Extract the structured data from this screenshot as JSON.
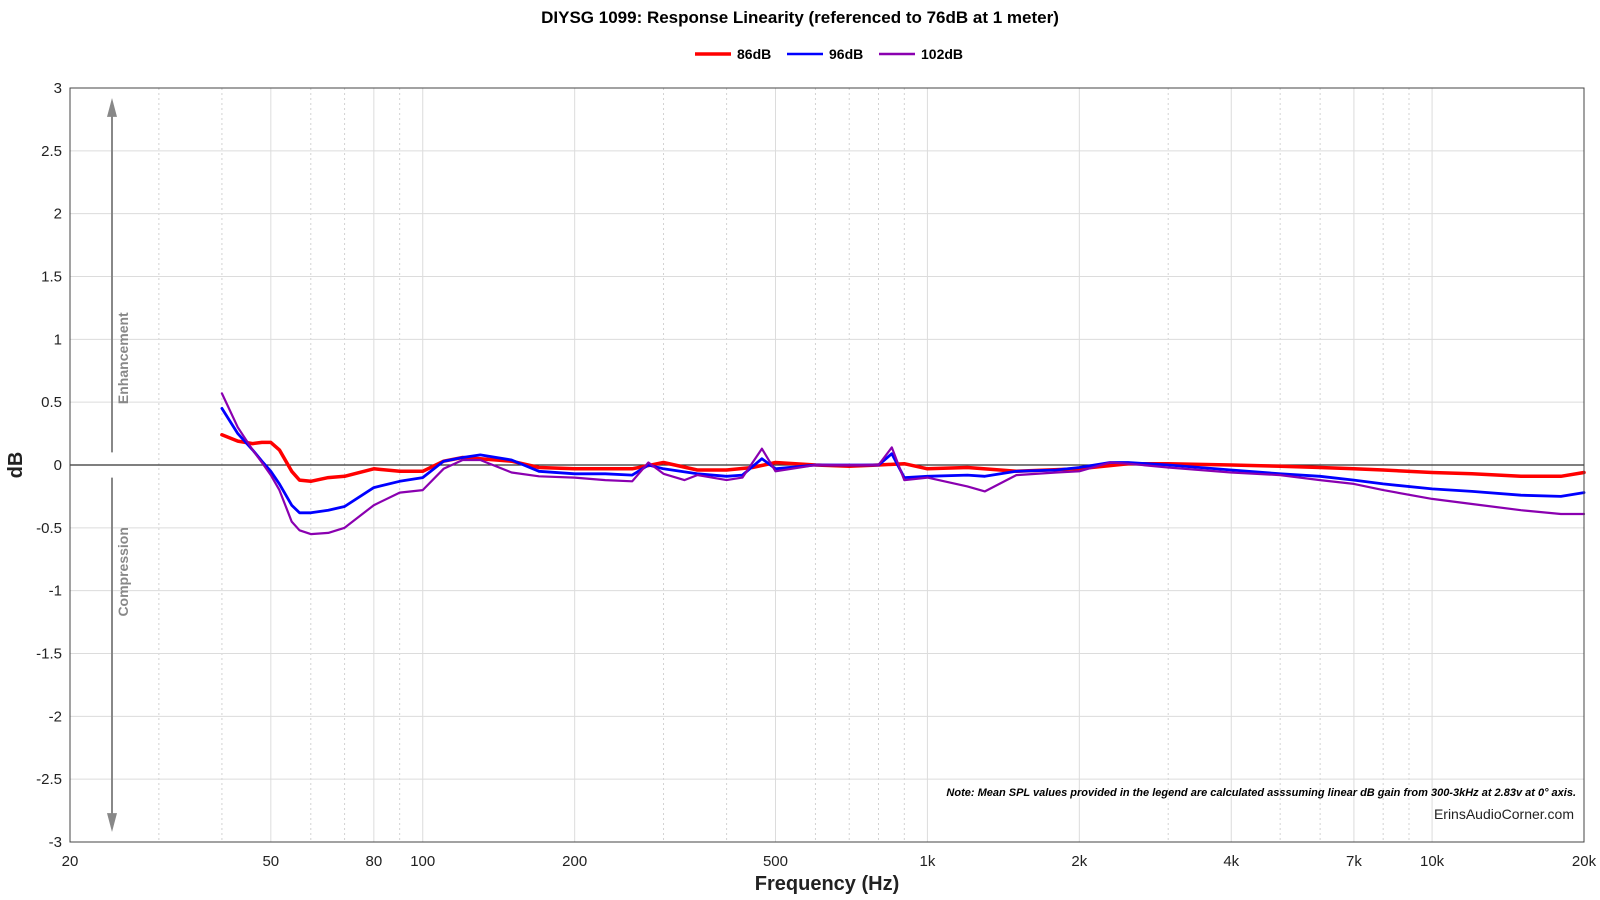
{
  "chart_data": {
    "type": "line",
    "title": "DIYSG 1099: Response Linearity (referenced to 76dB at 1 meter)",
    "xlabel": "Frequency (Hz)",
    "ylabel": "dB",
    "x_scale": "log",
    "xlim": [
      20,
      20000
    ],
    "ylim": [
      -3,
      3
    ],
    "x_tick_values": [
      20,
      50,
      80,
      100,
      200,
      500,
      1000,
      2000,
      4000,
      7000,
      10000,
      20000
    ],
    "x_tick_labels": [
      "20",
      "50",
      "80",
      "100",
      "200",
      "500",
      "1k",
      "2k",
      "4k",
      "7k",
      "10k",
      "20k"
    ],
    "y_tick_values": [
      3,
      2.5,
      2,
      1.5,
      1,
      0.5,
      0,
      -0.5,
      -1,
      -1.5,
      -2,
      -2.5,
      -3
    ],
    "y_tick_labels": [
      "3",
      "2.5",
      "2",
      "1.5",
      "1",
      "0.5",
      "0",
      "-0.5",
      "-1",
      "-1.5",
      "-2",
      "-2.5",
      "-3"
    ],
    "grid": true,
    "legend_position": "top-center",
    "region_labels": {
      "upper": "Enhancement",
      "lower": "Compression"
    },
    "note": "Note: Mean SPL values provided in the legend are calculated asssuming linear dB gain from 300-3kHz at 2.83v at 0° axis.",
    "credit": "ErinsAudioCorner.com",
    "series": [
      {
        "name": "86dB",
        "color": "#ff0000",
        "x": [
          40,
          43,
          46,
          48,
          50,
          52,
          55,
          57,
          60,
          65,
          70,
          80,
          90,
          100,
          110,
          120,
          130,
          150,
          170,
          200,
          230,
          260,
          300,
          350,
          400,
          450,
          500,
          600,
          700,
          800,
          900,
          1000,
          1200,
          1500,
          2000,
          2500,
          3000,
          4000,
          5000,
          6000,
          7000,
          8000,
          10000,
          12000,
          15000,
          18000,
          20000
        ],
        "y": [
          0.24,
          0.19,
          0.17,
          0.18,
          0.18,
          0.12,
          -0.05,
          -0.12,
          -0.13,
          -0.1,
          -0.09,
          -0.03,
          -0.05,
          -0.05,
          0.03,
          0.06,
          0.05,
          0.03,
          -0.02,
          -0.03,
          -0.03,
          -0.03,
          0.02,
          -0.04,
          -0.04,
          -0.02,
          0.02,
          0.0,
          -0.01,
          0.0,
          0.01,
          -0.03,
          -0.02,
          -0.05,
          -0.03,
          0.01,
          0.01,
          0.0,
          -0.01,
          -0.02,
          -0.03,
          -0.04,
          -0.06,
          -0.07,
          -0.09,
          -0.09,
          -0.06
        ]
      },
      {
        "name": "96dB",
        "color": "#0000ff",
        "x": [
          40,
          43,
          46,
          48,
          50,
          52,
          55,
          57,
          60,
          65,
          70,
          80,
          90,
          100,
          110,
          120,
          130,
          150,
          170,
          200,
          230,
          260,
          280,
          300,
          350,
          400,
          430,
          470,
          500,
          600,
          700,
          800,
          850,
          900,
          1000,
          1200,
          1300,
          1500,
          1800,
          2000,
          2300,
          2500,
          3000,
          4000,
          5000,
          6000,
          7000,
          8000,
          10000,
          12000,
          15000,
          18000,
          20000
        ],
        "y": [
          0.45,
          0.25,
          0.12,
          0.03,
          -0.05,
          -0.15,
          -0.32,
          -0.38,
          -0.38,
          -0.36,
          -0.33,
          -0.18,
          -0.13,
          -0.1,
          0.03,
          0.06,
          0.08,
          0.04,
          -0.05,
          -0.07,
          -0.07,
          -0.08,
          0.0,
          -0.03,
          -0.07,
          -0.09,
          -0.08,
          0.05,
          -0.03,
          0.0,
          0.0,
          0.0,
          0.09,
          -0.1,
          -0.09,
          -0.08,
          -0.09,
          -0.05,
          -0.04,
          -0.02,
          0.02,
          0.02,
          0.0,
          -0.04,
          -0.07,
          -0.09,
          -0.12,
          -0.15,
          -0.19,
          -0.21,
          -0.24,
          -0.25,
          -0.22
        ]
      },
      {
        "name": "102dB",
        "color": "#8a00b0",
        "x": [
          40,
          43,
          46,
          48,
          50,
          52,
          55,
          57,
          60,
          65,
          70,
          80,
          90,
          100,
          110,
          120,
          130,
          150,
          170,
          200,
          230,
          260,
          280,
          300,
          330,
          350,
          400,
          430,
          470,
          500,
          600,
          700,
          800,
          850,
          900,
          1000,
          1200,
          1300,
          1500,
          1800,
          2000,
          2300,
          2500,
          3000,
          4000,
          5000,
          6000,
          7000,
          8000,
          10000,
          12000,
          15000,
          18000,
          20000
        ],
        "y": [
          0.57,
          0.3,
          0.12,
          0.02,
          -0.08,
          -0.2,
          -0.45,
          -0.52,
          -0.55,
          -0.54,
          -0.5,
          -0.32,
          -0.22,
          -0.2,
          -0.03,
          0.04,
          0.04,
          -0.06,
          -0.09,
          -0.1,
          -0.12,
          -0.13,
          0.02,
          -0.07,
          -0.12,
          -0.08,
          -0.12,
          -0.1,
          0.13,
          -0.05,
          0.0,
          0.0,
          0.0,
          0.14,
          -0.12,
          -0.1,
          -0.17,
          -0.21,
          -0.08,
          -0.06,
          -0.05,
          0.02,
          0.01,
          -0.02,
          -0.06,
          -0.08,
          -0.12,
          -0.15,
          -0.2,
          -0.27,
          -0.31,
          -0.36,
          -0.39,
          -0.39
        ]
      }
    ]
  }
}
